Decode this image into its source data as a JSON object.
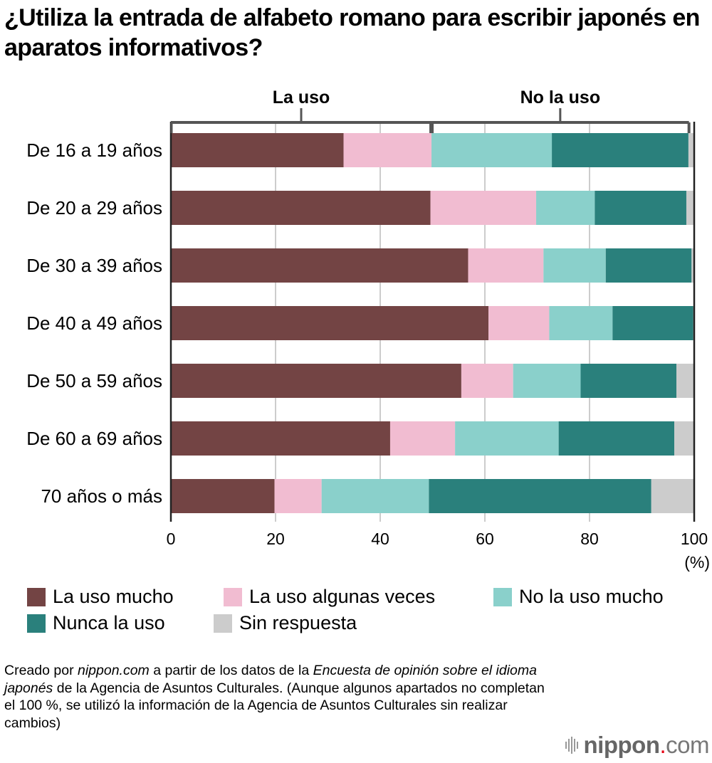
{
  "title": "¿Utiliza la entrada de alfabeto romano para escribir japonés en aparatos informativos?",
  "chart_data": {
    "type": "bar",
    "orientation": "horizontal",
    "stacked": true,
    "title": "¿Utiliza la entrada de alfabeto romano para escribir japonés en aparatos informativos?",
    "xlabel": "(%)",
    "ylabel": "",
    "xlim": [
      0,
      100
    ],
    "xticks": [
      0,
      20,
      40,
      60,
      80,
      100
    ],
    "xtick_labels": [
      "0",
      "20",
      "40",
      "60",
      "80",
      "100"
    ],
    "unit_label": "(%)",
    "grid": true,
    "categories": [
      "De 16 a 19 años",
      "De 20 a 29 años",
      "De 30 a 39 años",
      "De 40 a 49 años",
      "De 50 a 59 años",
      "De 60 a 69 años",
      "70 años o más"
    ],
    "series": [
      {
        "name": "La uso mucho",
        "color": "#734444",
        "values": [
          33.0,
          49.6,
          56.8,
          60.7,
          55.5,
          41.9,
          19.8
        ]
      },
      {
        "name": "La uso algunas veces",
        "color": "#f1bcd1",
        "values": [
          16.8,
          20.2,
          14.4,
          11.6,
          9.9,
          12.4,
          9.0
        ]
      },
      {
        "name": "No la uso mucho",
        "color": "#8ad0cb",
        "values": [
          23.0,
          11.2,
          11.9,
          12.1,
          12.9,
          19.8,
          20.5
        ]
      },
      {
        "name": "Nunca la uso",
        "color": "#2a807c",
        "values": [
          26.1,
          17.5,
          16.4,
          15.4,
          18.3,
          22.1,
          42.5
        ]
      },
      {
        "name": "Sin respuesta",
        "color": "#cccccc",
        "values": [
          1.1,
          1.5,
          0.5,
          0.2,
          3.4,
          3.8,
          8.2
        ]
      }
    ],
    "group_brackets": [
      {
        "label": "La uso",
        "from": 0,
        "to": 49.8
      },
      {
        "label": "No la uso",
        "from": 49.8,
        "to": 99
      }
    ],
    "legend_position": "bottom-left"
  },
  "note": {
    "part1": "Creado por ",
    "italic1": "nippon.com",
    "part2": " a partir de los datos de la ",
    "italic2": "Encuesta de opinión sobre el idioma japonés",
    "part3": " de la Agencia de Asuntos Culturales. (Aunque algunos apartados no completan el 100 %, se utilizó la información de la Agencia de Asuntos Culturales sin realizar cambios)"
  },
  "brand": {
    "name": "nippon",
    "dot": ".",
    "tld": "com",
    "icon": "soundwave-bars-icon"
  }
}
